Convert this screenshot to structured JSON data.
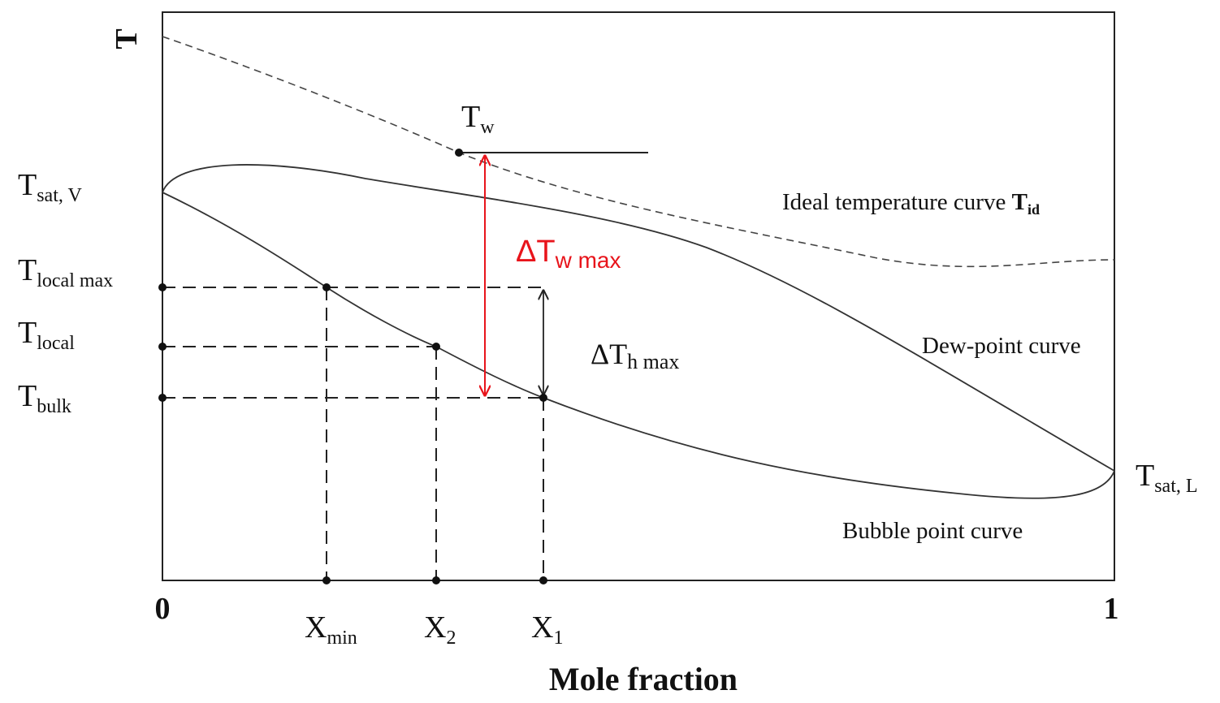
{
  "axes": {
    "y_label": "T",
    "x_label": "Mole fraction",
    "x_min_label": "0",
    "x_max_label": "1"
  },
  "y_labels": {
    "t_sat_v": {
      "main": "T",
      "sub": "sat, V"
    },
    "t_local_max": {
      "main": "T",
      "sub": "local max"
    },
    "t_local": {
      "main": "T",
      "sub": "local"
    },
    "t_bulk": {
      "main": "T",
      "sub": "bulk"
    }
  },
  "x_labels": {
    "x_min": {
      "main": "X",
      "sub": "min"
    },
    "x_2": {
      "main": "X",
      "sub": "2"
    },
    "x_1": {
      "main": "X",
      "sub": "1"
    }
  },
  "t_w": {
    "main": "T",
    "sub": "w"
  },
  "t_sat_l": {
    "main": "T",
    "sub": "sat, L"
  },
  "delta_tw_max": {
    "main": "ΔT",
    "sub": "w max",
    "color": "#e8141b"
  },
  "delta_th_max": {
    "main": "ΔT",
    "sub": "h max"
  },
  "curve_labels": {
    "ideal": {
      "text": "Ideal temperature curve ",
      "bold_main": "T",
      "bold_sub": "id"
    },
    "dew": "Dew-point curve",
    "bubble": "Bubble point curve"
  },
  "colors": {
    "line": "#222222",
    "accent_red": "#e8141b"
  }
}
